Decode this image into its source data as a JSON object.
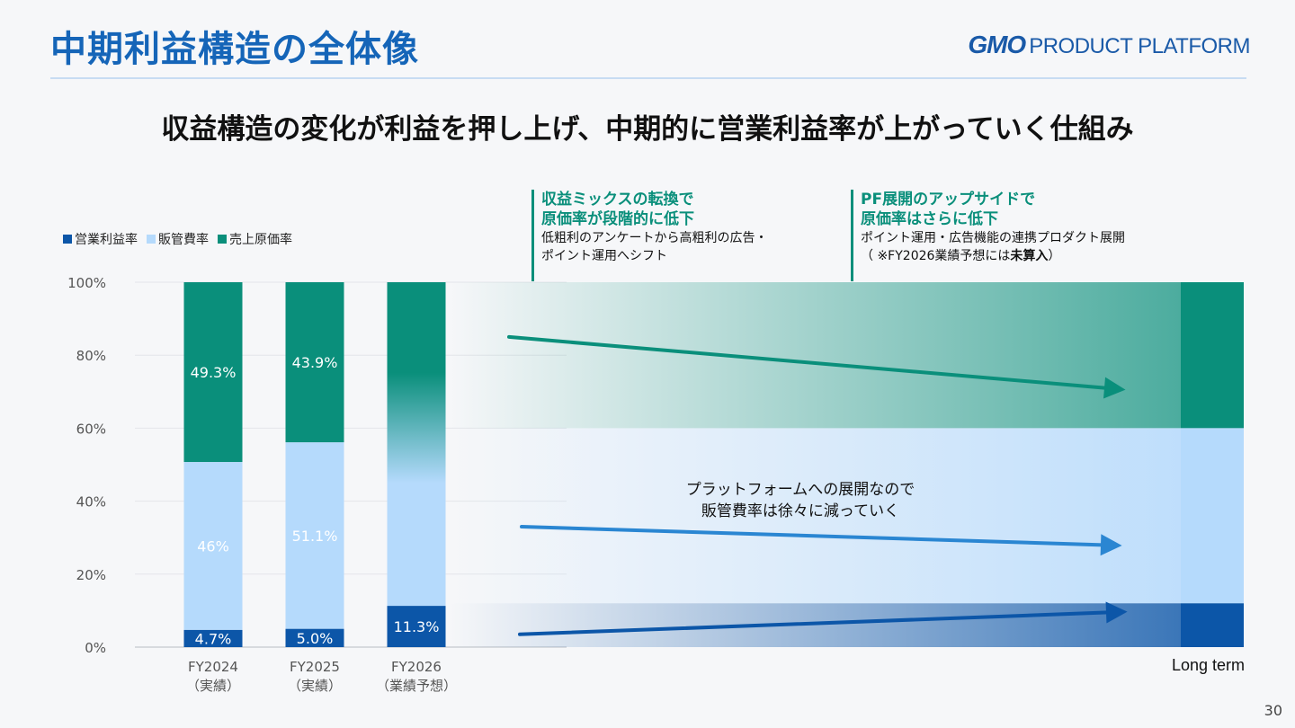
{
  "header": {
    "title": "中期利益構造の全体像",
    "logo_gmo": "GMO",
    "logo_rest": "PRODUCT PLATFORM",
    "subtitle": "収益構造の変化が利益を押し上げ、中期的に営業利益率が上がっていく仕組み"
  },
  "legend": [
    {
      "label": "営業利益率",
      "color": "#0c56a8"
    },
    {
      "label": "販管費率",
      "color": "#b5dafc"
    },
    {
      "label": "売上原価率",
      "color": "#0a8f7b"
    }
  ],
  "annotations": {
    "a1": {
      "head1": "収益ミックスの転換で",
      "head2": "原価率が段階的に低下",
      "body1": "低粗利のアンケートから高粗利の広告・",
      "body2": "ポイント運用へシフト"
    },
    "a2": {
      "head1": "PF展開のアップサイドで",
      "head2": "原価率はさらに低下",
      "body1": "ポイント運用・広告機能の連携プロダクト展開",
      "body2_pre": "（ ※FY2026業績予想には",
      "body2_bold": "未算入",
      "body2_post": "）"
    },
    "mid1": "プラットフォームへの展開なので",
    "mid2": "販管費率は徐々に減っていく"
  },
  "long_term_label": "Long term",
  "page_number": "30",
  "chart_data": {
    "type": "bar",
    "stacked": true,
    "ylim": [
      0,
      100
    ],
    "yticks": [
      "0%",
      "20%",
      "40%",
      "60%",
      "80%",
      "100%"
    ],
    "categories": [
      {
        "line1": "FY2024",
        "line2": "（実績）"
      },
      {
        "line1": "FY2025",
        "line2": "（実績）"
      },
      {
        "line1": "FY2026",
        "line2": "（業績予想）"
      }
    ],
    "series": [
      {
        "name": "営業利益率",
        "values": [
          4.7,
          5.0,
          11.3
        ],
        "labels": [
          "4.7%",
          "5.0%",
          "11.3%"
        ],
        "color": "#0c56a8"
      },
      {
        "name": "販管費率",
        "values": [
          46,
          51.1,
          null
        ],
        "labels": [
          "46%",
          "51.1%",
          ""
        ],
        "color": "#b5dafc"
      },
      {
        "name": "売上原価率",
        "values": [
          49.3,
          43.9,
          null
        ],
        "labels": [
          "49.3%",
          "43.9%",
          ""
        ],
        "color": "#0a8f7b"
      }
    ],
    "long_term": {
      "operating": 12,
      "sga": 48,
      "cogs": 40
    },
    "arrows": [
      {
        "series": "売上原価率",
        "direction": "down",
        "color": "#0a8f7b"
      },
      {
        "series": "販管費率",
        "direction": "down",
        "color": "#2a86d2"
      },
      {
        "series": "営業利益率",
        "direction": "up",
        "color": "#0c56a8"
      }
    ]
  }
}
